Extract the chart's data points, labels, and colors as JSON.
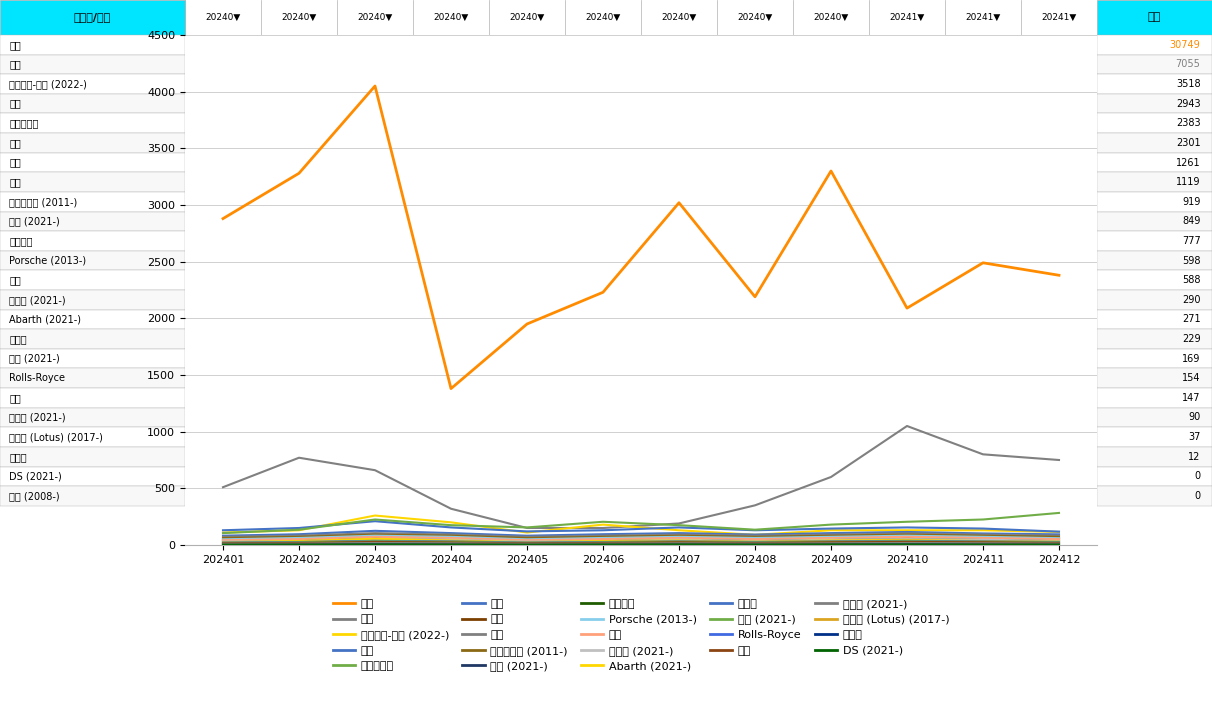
{
  "months": [
    "202401",
    "202402",
    "202403",
    "202404",
    "202405",
    "202406",
    "202407",
    "202408",
    "202409",
    "202410",
    "202411",
    "202412"
  ],
  "brands": [
    "日产",
    "三菱",
    "梅赛德斯-奔驰 (2022-)",
    "宝马",
    "比亚迪汽车",
    "奥迪",
    "丰田",
    "大众",
    "沃尔沃汽车 (2011-)",
    "吉普 (2021-)",
    "雷克萨斯",
    "Porsche (2013-)",
    "现代",
    "菲亚特 (2021-)",
    "Abarth (2021-)",
    "斯巴鲁",
    "标致 (2021-)",
    "Rolls-Royce",
    "本田",
    "雪铁龙 (2021-)",
    "路特斯 (Lotus) (2017-)",
    "马自达",
    "DS (2021-)",
    "捷豹 (2008-)"
  ],
  "totals": [
    30749,
    7055,
    3518,
    2943,
    2383,
    2301,
    1261,
    1119,
    919,
    849,
    777,
    598,
    588,
    290,
    271,
    229,
    169,
    154,
    147,
    90,
    37,
    12,
    0,
    0
  ],
  "series": {
    "日产": {
      "values": [
        2880,
        3280,
        4050,
        1380,
        1950,
        2230,
        3020,
        2190,
        3300,
        2090,
        2490,
        2380
      ],
      "color": "#FF8C00",
      "lw": 2.0
    },
    "三菱": {
      "values": [
        510,
        770,
        660,
        320,
        150,
        150,
        190,
        350,
        600,
        1050,
        800,
        750
      ],
      "color": "#808080",
      "lw": 1.5
    },
    "梅赛德斯-奔驰 (2022-)": {
      "values": [
        110,
        130,
        260,
        200,
        110,
        180,
        130,
        90,
        130,
        130,
        130,
        115
      ],
      "color": "#FFD700",
      "lw": 1.5
    },
    "宝马": {
      "values": [
        130,
        150,
        210,
        155,
        120,
        130,
        155,
        130,
        145,
        155,
        145,
        118
      ],
      "color": "#4472C4",
      "lw": 1.5
    },
    "比亚迪汽车": {
      "values": [
        105,
        135,
        225,
        175,
        155,
        205,
        175,
        135,
        180,
        205,
        225,
        283
      ],
      "color": "#70AD47",
      "lw": 1.5
    },
    "奥迪": {
      "values": [
        82,
        95,
        125,
        105,
        82,
        95,
        105,
        92,
        105,
        115,
        102,
        94
      ],
      "color": "#4472C4",
      "lw": 1.5
    },
    "丰田": {
      "values": [
        52,
        62,
        82,
        72,
        52,
        62,
        72,
        62,
        72,
        82,
        72,
        61
      ],
      "color": "#7B3F00",
      "lw": 1.5
    },
    "大众": {
      "values": [
        72,
        82,
        105,
        92,
        72,
        82,
        92,
        82,
        92,
        102,
        92,
        82
      ],
      "color": "#808080",
      "lw": 1.5
    },
    "沃尔沃汽车 (2011-)": {
      "values": [
        62,
        72,
        92,
        82,
        62,
        72,
        82,
        72,
        82,
        92,
        82,
        72
      ],
      "color": "#8B6914",
      "lw": 1.5
    },
    "吉普 (2021-)": {
      "values": [
        42,
        52,
        72,
        62,
        42,
        52,
        62,
        52,
        62,
        72,
        62,
        52
      ],
      "color": "#1F3864",
      "lw": 1.5
    },
    "雷克萨斯": {
      "values": [
        32,
        37,
        52,
        42,
        32,
        37,
        47,
        37,
        47,
        52,
        47,
        37
      ],
      "color": "#1F5C00",
      "lw": 1.5
    },
    "Porsche (2013-)": {
      "values": [
        50,
        62,
        82,
        72,
        50,
        62,
        72,
        62,
        72,
        82,
        72,
        60
      ],
      "color": "#87CEEB",
      "lw": 1.5
    },
    "现代": {
      "values": [
        42,
        52,
        72,
        62,
        42,
        52,
        62,
        52,
        62,
        72,
        62,
        52
      ],
      "color": "#FFA07A",
      "lw": 1.5
    },
    "菲亚特 (2021-)": {
      "values": [
        30,
        35,
        52,
        47,
        30,
        35,
        47,
        35,
        47,
        52,
        47,
        35
      ],
      "color": "#C0C0C0",
      "lw": 1.5
    },
    "Abarth (2021-)": {
      "values": [
        25,
        35,
        55,
        40,
        25,
        35,
        40,
        30,
        40,
        45,
        35,
        30
      ],
      "color": "#FFD700",
      "lw": 1.5
    },
    "斯巴鲁": {
      "values": [
        22,
        27,
        37,
        32,
        22,
        27,
        32,
        27,
        32,
        37,
        32,
        27
      ],
      "color": "#4472C4",
      "lw": 1.5
    },
    "标致 (2021-)": {
      "values": [
        18,
        23,
        33,
        28,
        18,
        23,
        28,
        23,
        28,
        33,
        28,
        23
      ],
      "color": "#70AD47",
      "lw": 1.5
    },
    "Rolls-Royce": {
      "values": [
        12,
        14,
        20,
        17,
        12,
        14,
        17,
        14,
        17,
        20,
        17,
        14
      ],
      "color": "#4169E1",
      "lw": 1.5
    },
    "本田": {
      "values": [
        15,
        18,
        27,
        22,
        15,
        18,
        24,
        18,
        24,
        27,
        24,
        18
      ],
      "color": "#8B4513",
      "lw": 1.5
    },
    "雪铁龙 (2021-)": {
      "values": [
        10,
        12,
        18,
        15,
        10,
        12,
        15,
        12,
        15,
        18,
        15,
        12
      ],
      "color": "#808080",
      "lw": 1.5
    },
    "路特斯 (Lotus) (2017-)": {
      "values": [
        5,
        6,
        9,
        8,
        5,
        6,
        8,
        6,
        8,
        9,
        8,
        6
      ],
      "color": "#DAA520",
      "lw": 1.5
    },
    "马自达": {
      "values": [
        3,
        4,
        6,
        5,
        3,
        4,
        5,
        4,
        5,
        6,
        5,
        4
      ],
      "color": "#003087",
      "lw": 1.5
    },
    "DS (2021-)": {
      "values": [
        2,
        3,
        4,
        3,
        2,
        3,
        4,
        3,
        4,
        4,
        3,
        3
      ],
      "color": "#006400",
      "lw": 1.5
    }
  },
  "legend_entries": [
    {
      "label": "日产",
      "color": "#FF8C00"
    },
    {
      "label": "三菱",
      "color": "#808080"
    },
    {
      "label": "梅赛德斯-奔驰 (2022-)",
      "color": "#FFD700"
    },
    {
      "label": "宝马",
      "color": "#4472C4"
    },
    {
      "label": "比亚迪汽车",
      "color": "#70AD47"
    },
    {
      "label": "奥迪",
      "color": "#4472C4"
    },
    {
      "label": "丰田",
      "color": "#7B3F00"
    },
    {
      "label": "大众",
      "color": "#808080"
    },
    {
      "label": "沃尔沃汽车 (2011-)",
      "color": "#8B6914"
    },
    {
      "label": "吉普 (2021-)",
      "color": "#1F3864"
    },
    {
      "label": "雷克萨斯",
      "color": "#1F5C00"
    },
    {
      "label": "Porsche (2013-)",
      "color": "#87CEEB"
    },
    {
      "label": "现代",
      "color": "#FFA07A"
    },
    {
      "label": "菲亚特 (2021-)",
      "color": "#C0C0C0"
    },
    {
      "label": "Abarth (2021-)",
      "color": "#FFD700"
    },
    {
      "label": "斯巴鲁",
      "color": "#4472C4"
    },
    {
      "label": "标致 (2021-)",
      "color": "#70AD47"
    },
    {
      "label": "Rolls-Royce",
      "color": "#4169E1"
    },
    {
      "label": "本田",
      "color": "#8B4513"
    },
    {
      "label": "雪铁龙 (2021-)",
      "color": "#808080"
    },
    {
      "label": "路特斯 (Lotus) (2017-)",
      "color": "#DAA520"
    },
    {
      "label": "马自达",
      "color": "#003087"
    },
    {
      "label": "DS (2021-)",
      "color": "#006400"
    }
  ],
  "ylim": [
    0,
    4500
  ],
  "yticks": [
    0,
    500,
    1000,
    1500,
    2000,
    2500,
    3000,
    3500,
    4000,
    4500
  ],
  "header_bg": "#00E5FF",
  "row_bg_white": "#FFFFFF",
  "row_bg_light": "#F8F8F8",
  "grid_color": "#D0D0D0",
  "border_color": "#B0B0B0",
  "text_color": "#000000",
  "chart_bg": "#FFFFFF"
}
